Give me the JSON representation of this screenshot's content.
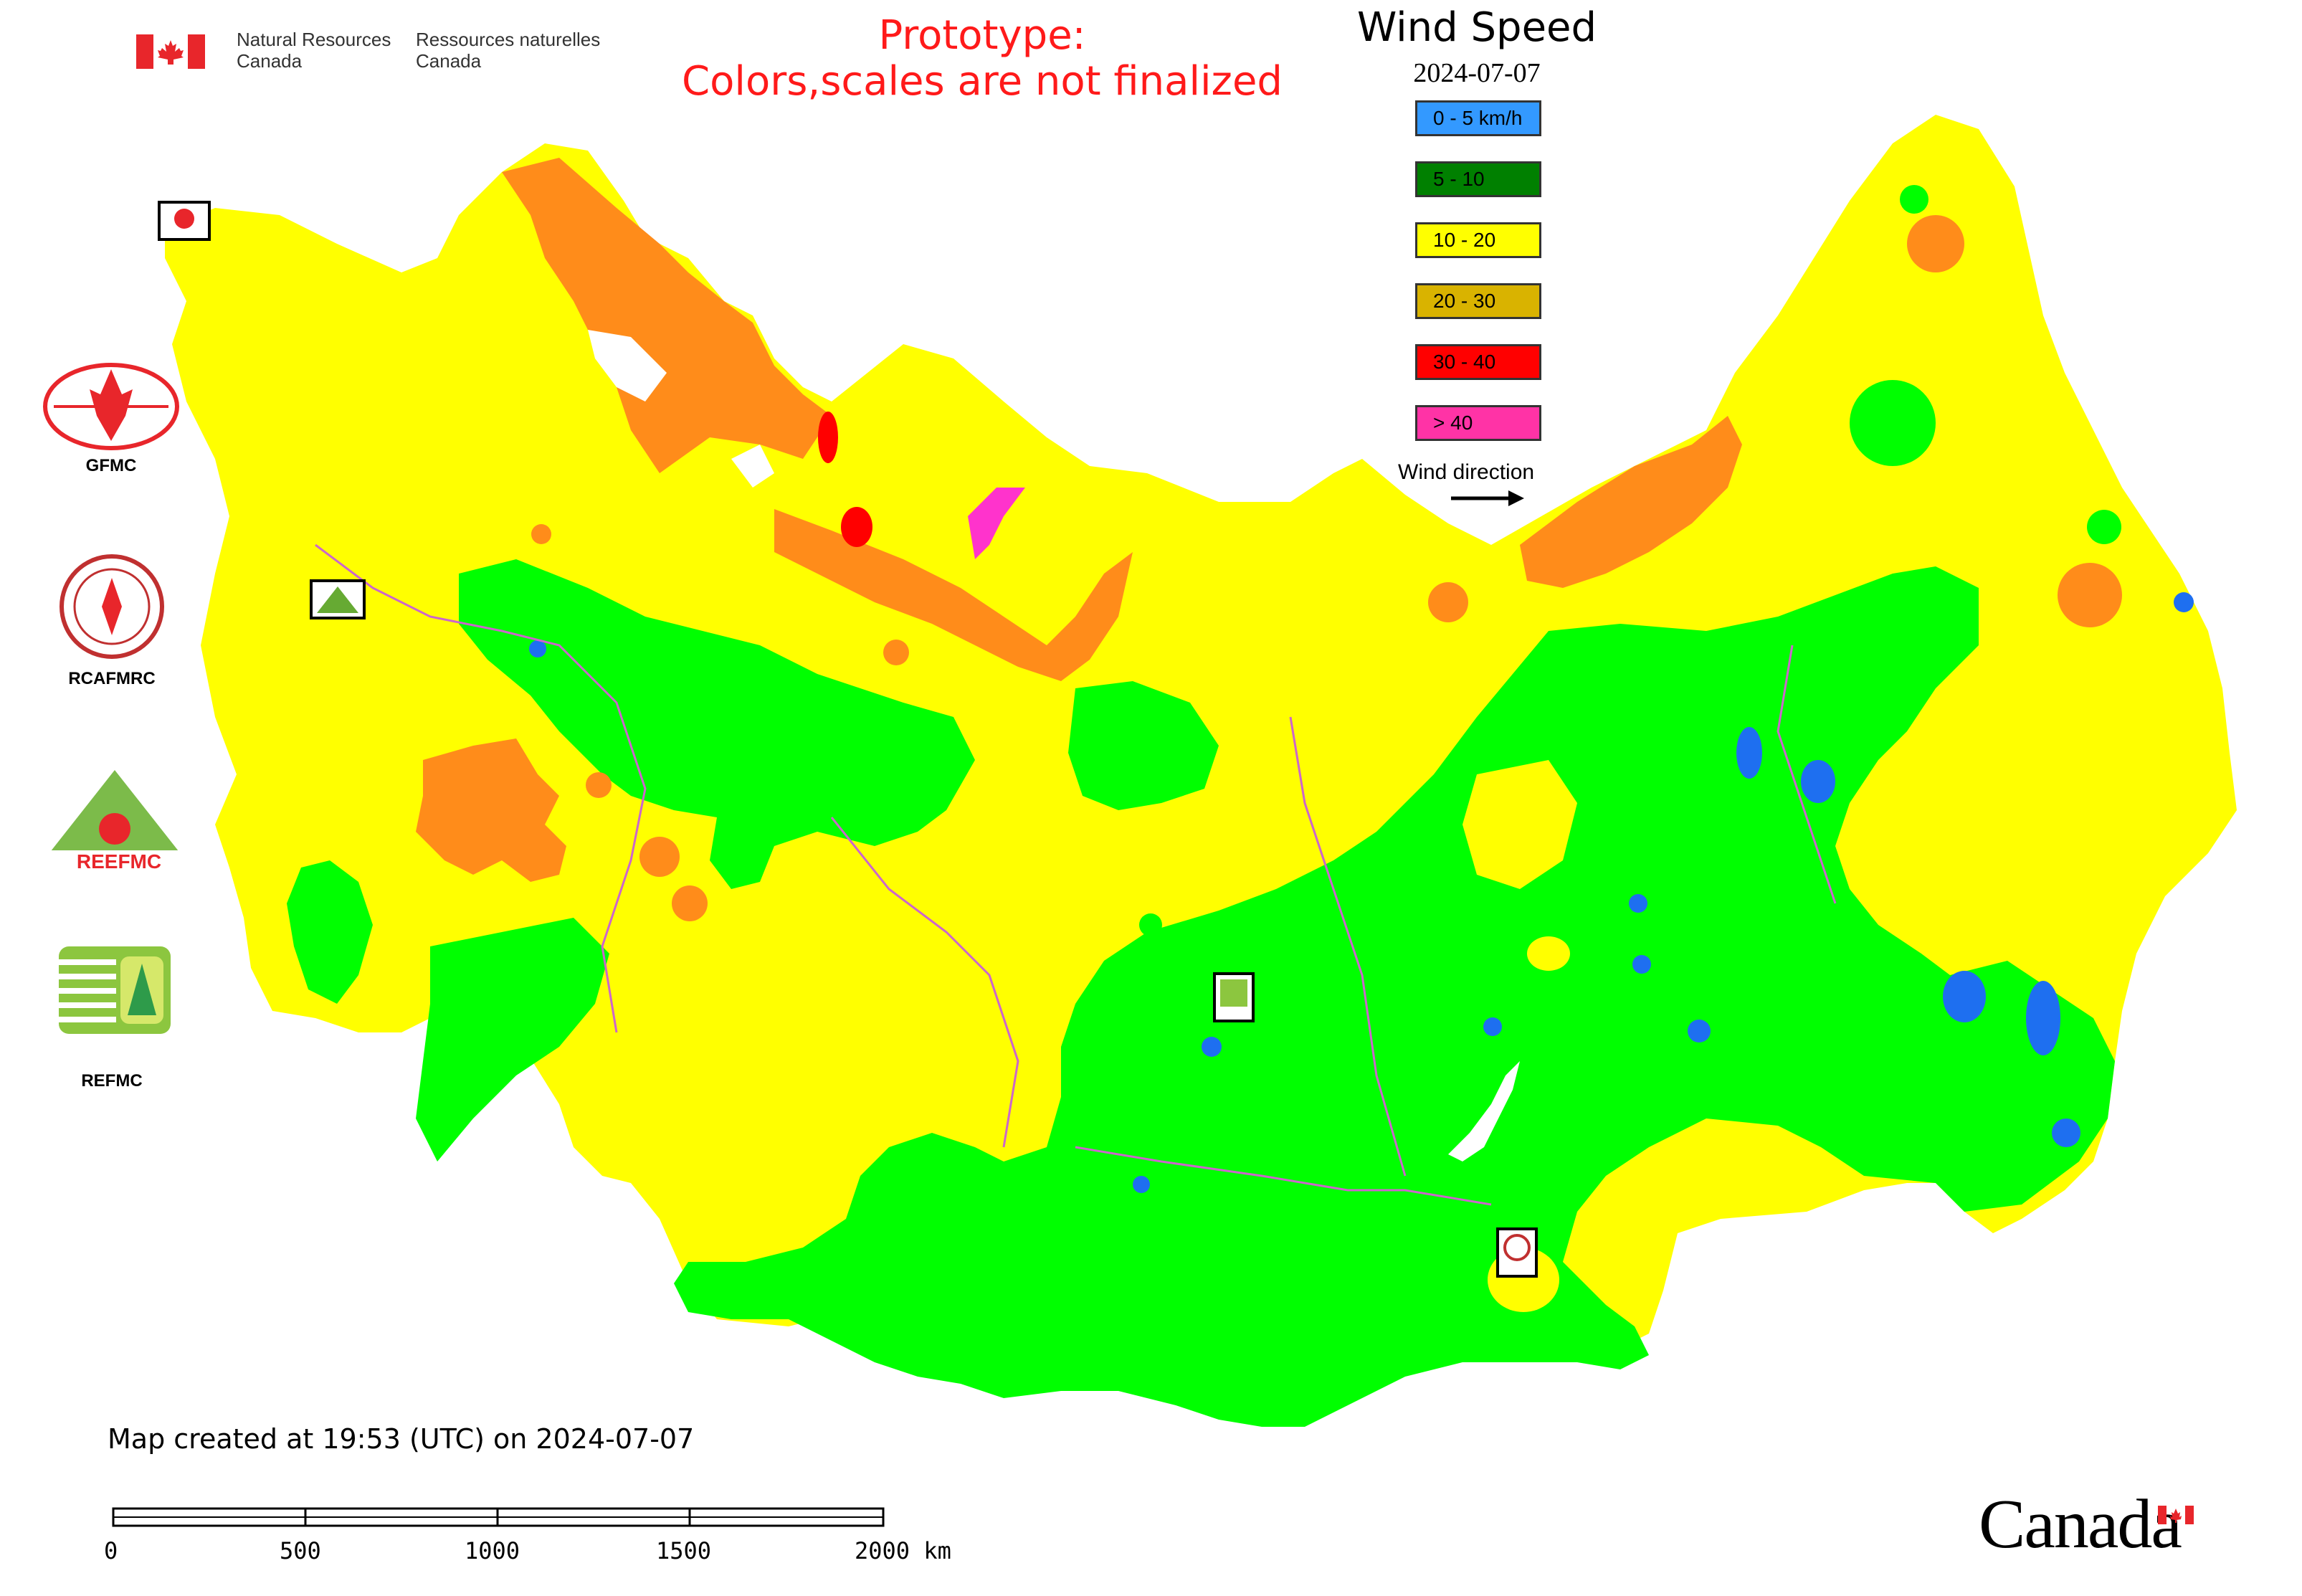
{
  "header": {
    "dept_en_line1": "Natural Resources",
    "dept_en_line2": "Canada",
    "dept_fr_line1": "Ressources naturelles",
    "dept_fr_line2": "Canada",
    "prototype_line1": "Prototype:",
    "prototype_line2": "Colors,scales are not finalized"
  },
  "legend": {
    "title": "Wind Speed",
    "date": "2024-07-07",
    "classes": [
      {
        "label": "0 - 5 km/h",
        "color": "#3399ff"
      },
      {
        "label": "5 - 10",
        "color": "#008000"
      },
      {
        "label": "10 - 20",
        "color": "#ffff00"
      },
      {
        "label": "20 - 30",
        "color": "#d9b300"
      },
      {
        "label": "30 - 40",
        "color": "#ff0000"
      },
      {
        "label": "> 40",
        "color": "#ff33a6"
      }
    ],
    "wind_direction_label": "Wind direction"
  },
  "agencies": {
    "gfmc": "GFMC",
    "rcafmrc": "RCAFMRC",
    "reefmc_logo_text": "REEFMC",
    "refmc": "REFMC"
  },
  "footer": {
    "created": "Map created at 19:53 (UTC) on 2024-07-07",
    "scale_labels": [
      "0",
      "500",
      "1000",
      "1500",
      "2000 km"
    ],
    "wordmark": "Canada"
  },
  "map_colors": {
    "calm": "#1e6ff0",
    "light": "#00ff00",
    "moderate": "#ffff00",
    "fresh": "#ff8c1a",
    "strong": "#ff0000",
    "very_strong": "#ff33cc",
    "boundary": "#cc66cc",
    "water": "#ffffff"
  }
}
